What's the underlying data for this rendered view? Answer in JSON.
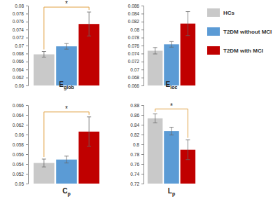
{
  "chart_data": [
    {
      "type": "bar",
      "xlabel": "Eglob",
      "legend": "right",
      "ylim": [
        0.06,
        0.08
      ],
      "yticks": [
        0.06,
        0.062,
        0.064,
        0.066,
        0.068,
        0.07,
        0.072,
        0.074,
        0.076,
        0.078,
        0.08
      ],
      "series": [
        {
          "name": "HCs",
          "color": "#c9c9c9",
          "values": [
            0.0678
          ],
          "errors": [
            0.0007
          ]
        },
        {
          "name": "T2DM without MCI",
          "color": "#5b9bd5",
          "values": [
            0.0698
          ],
          "errors": [
            0.0007
          ]
        },
        {
          "name": "T2DM with MCI",
          "color": "#c00000",
          "values": [
            0.0754
          ],
          "errors": [
            0.003
          ]
        }
      ],
      "annotations": [
        {
          "text": "*",
          "between": [
            "HCs",
            "T2DM with MCI"
          ]
        }
      ]
    },
    {
      "type": "bar",
      "xlabel": "Eloc",
      "ylim": [
        0.066,
        0.086
      ],
      "yticks": [
        0.066,
        0.068,
        0.07,
        0.072,
        0.074,
        0.076,
        0.078,
        0.08,
        0.082,
        0.084,
        0.086
      ],
      "series": [
        {
          "name": "HCs",
          "color": "#c9c9c9",
          "values": [
            0.0747
          ],
          "errors": [
            0.0008
          ]
        },
        {
          "name": "T2DM without MCI",
          "color": "#5b9bd5",
          "values": [
            0.0763
          ],
          "errors": [
            0.0007
          ]
        },
        {
          "name": "T2DM with MCI",
          "color": "#c00000",
          "values": [
            0.0815
          ],
          "errors": [
            0.003
          ]
        }
      ]
    },
    {
      "type": "bar",
      "xlabel": "Cp",
      "ylim": [
        0.05,
        0.066
      ],
      "yticks": [
        0.05,
        0.052,
        0.054,
        0.056,
        0.058,
        0.06,
        0.062,
        0.064,
        0.066
      ],
      "series": [
        {
          "name": "HCs",
          "color": "#c9c9c9",
          "values": [
            0.0542
          ],
          "errors": [
            0.0008
          ]
        },
        {
          "name": "T2DM without MCI",
          "color": "#5b9bd5",
          "values": [
            0.0549
          ],
          "errors": [
            0.0007
          ]
        },
        {
          "name": "T2DM with MCI",
          "color": "#c00000",
          "values": [
            0.0606
          ],
          "errors": [
            0.003
          ]
        }
      ],
      "annotations": [
        {
          "text": "*",
          "between": [
            "HCs",
            "T2DM with MCI"
          ]
        }
      ]
    },
    {
      "type": "bar",
      "xlabel": "Lp",
      "ylim": [
        0.72,
        0.88
      ],
      "yticks": [
        0.72,
        0.74,
        0.76,
        0.78,
        0.8,
        0.82,
        0.84,
        0.86,
        0.88
      ],
      "series": [
        {
          "name": "HCs",
          "color": "#c9c9c9",
          "values": [
            0.853
          ],
          "errors": [
            0.009
          ]
        },
        {
          "name": "T2DM without MCI",
          "color": "#5b9bd5",
          "values": [
            0.827
          ],
          "errors": [
            0.008
          ]
        },
        {
          "name": "T2DM with MCI",
          "color": "#c00000",
          "values": [
            0.789
          ],
          "errors": [
            0.02
          ]
        }
      ],
      "annotations": [
        {
          "text": "*",
          "between": [
            "HCs",
            "T2DM with MCI"
          ]
        }
      ]
    }
  ]
}
